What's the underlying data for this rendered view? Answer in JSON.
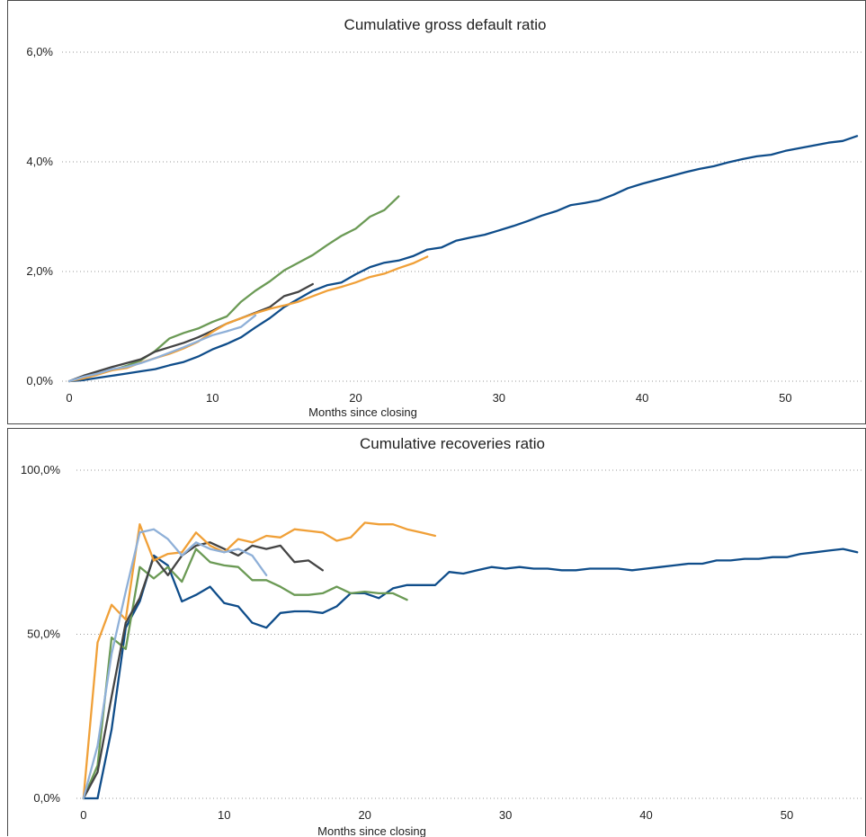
{
  "chart_data": [
    {
      "type": "line",
      "title": "Cumulative gross default ratio",
      "xlabel": "Months since closing",
      "ylabel": "",
      "xlim": [
        -0.5,
        55.5
      ],
      "ylim": [
        0,
        6
      ],
      "yticks": [
        0,
        2,
        4,
        6
      ],
      "ytick_labels": [
        "0,0%",
        "2,0%",
        "4,0%",
        "6,0%"
      ],
      "xticks": [
        0,
        10,
        20,
        30,
        40,
        50
      ],
      "xtick_labels": [
        "0",
        "10",
        "20",
        "30",
        "40",
        "50"
      ],
      "grid": "horizontal dotted",
      "legend": "none",
      "series": [
        {
          "color": "#0f4d8a",
          "x": [
            0,
            1,
            2,
            3,
            4,
            5,
            6,
            7,
            8,
            9,
            10,
            11,
            12,
            13,
            14,
            15,
            16,
            17,
            18,
            19,
            20,
            21,
            22,
            23,
            24,
            25,
            26,
            27,
            28,
            29,
            30,
            31,
            32,
            33,
            34,
            35,
            36,
            37,
            38,
            39,
            40,
            41,
            42,
            43,
            44,
            45,
            46,
            47,
            48,
            49,
            50,
            51,
            52,
            53,
            54,
            55
          ],
          "y": [
            0,
            0.02,
            0.06,
            0.1,
            0.14,
            0.18,
            0.22,
            0.29,
            0.35,
            0.45,
            0.58,
            0.68,
            0.8,
            0.98,
            1.15,
            1.35,
            1.5,
            1.65,
            1.75,
            1.8,
            1.95,
            2.08,
            2.16,
            2.2,
            2.28,
            2.4,
            2.44,
            2.56,
            2.62,
            2.67,
            2.75,
            2.83,
            2.92,
            3.02,
            3.1,
            3.21,
            3.25,
            3.3,
            3.4,
            3.52,
            3.6,
            3.67,
            3.74,
            3.81,
            3.87,
            3.92,
            3.99,
            4.05,
            4.1,
            4.13,
            4.2,
            4.25,
            4.3,
            4.35,
            4.38,
            4.47
          ]
        },
        {
          "color": "#6b9a55",
          "x": [
            0,
            1,
            2,
            3,
            4,
            5,
            6,
            7,
            8,
            9,
            10,
            11,
            12,
            13,
            14,
            15,
            16,
            17,
            18,
            19,
            20,
            21,
            22,
            23
          ],
          "y": [
            0,
            0.06,
            0.14,
            0.2,
            0.28,
            0.38,
            0.55,
            0.78,
            0.88,
            0.96,
            1.08,
            1.18,
            1.45,
            1.65,
            1.82,
            2.02,
            2.16,
            2.3,
            2.48,
            2.65,
            2.78,
            3.0,
            3.12,
            3.37
          ]
        },
        {
          "color": "#444444",
          "x": [
            0,
            1,
            2,
            3,
            4,
            5,
            6,
            7,
            8,
            9,
            10,
            11,
            12,
            13,
            14,
            15,
            16,
            17
          ],
          "y": [
            0,
            0.1,
            0.18,
            0.26,
            0.33,
            0.4,
            0.54,
            0.62,
            0.7,
            0.8,
            0.92,
            1.05,
            1.15,
            1.25,
            1.35,
            1.55,
            1.63,
            1.77
          ]
        },
        {
          "color": "#f0a038",
          "x": [
            0,
            1,
            2,
            3,
            4,
            5,
            6,
            7,
            8,
            9,
            10,
            11,
            12,
            13,
            14,
            15,
            16,
            17,
            18,
            19,
            20,
            21,
            22,
            23,
            24,
            25
          ],
          "y": [
            0,
            0.05,
            0.12,
            0.2,
            0.24,
            0.34,
            0.42,
            0.5,
            0.6,
            0.72,
            0.9,
            1.05,
            1.15,
            1.24,
            1.32,
            1.38,
            1.45,
            1.55,
            1.65,
            1.72,
            1.8,
            1.9,
            1.96,
            2.06,
            2.15,
            2.27
          ]
        },
        {
          "color": "#8fb0d8",
          "x": [
            0,
            1,
            2,
            3,
            4,
            5,
            6,
            7,
            8,
            9,
            10,
            11,
            12,
            13
          ],
          "y": [
            0,
            0.08,
            0.14,
            0.22,
            0.26,
            0.33,
            0.42,
            0.52,
            0.62,
            0.73,
            0.84,
            0.91,
            0.99,
            1.2
          ]
        }
      ]
    },
    {
      "type": "line",
      "title": "Cumulative recoveries ratio",
      "xlabel": "Months since closing",
      "ylabel": "",
      "xlim": [
        -0.5,
        55.5
      ],
      "ylim": [
        0,
        100
      ],
      "yticks": [
        0,
        50,
        100
      ],
      "ytick_labels": [
        "0,0%",
        "50,0%",
        "100,0%"
      ],
      "xticks": [
        0,
        10,
        20,
        30,
        40,
        50
      ],
      "xtick_labels": [
        "0",
        "10",
        "20",
        "30",
        "40",
        "50"
      ],
      "grid": "horizontal dotted",
      "legend": "none",
      "series": [
        {
          "color": "#0f4d8a",
          "x": [
            0,
            1,
            2,
            3,
            4,
            5,
            6,
            7,
            8,
            9,
            10,
            11,
            12,
            13,
            14,
            15,
            16,
            17,
            18,
            19,
            20,
            21,
            22,
            23,
            24,
            25,
            26,
            27,
            28,
            29,
            30,
            31,
            32,
            33,
            34,
            35,
            36,
            37,
            38,
            39,
            40,
            41,
            42,
            43,
            44,
            45,
            46,
            47,
            48,
            49,
            50,
            51,
            52,
            53,
            54,
            55
          ],
          "y": [
            0,
            0,
            21,
            52,
            60,
            74,
            71,
            60,
            62,
            64.5,
            59.5,
            58.5,
            53.5,
            52,
            56.5,
            57,
            57,
            56.5,
            58.5,
            62.5,
            62.5,
            61,
            64,
            65,
            65,
            65,
            69,
            68.5,
            69.5,
            70.5,
            70,
            70.5,
            70,
            70,
            69.5,
            69.5,
            70,
            70,
            70,
            69.5,
            70,
            70.5,
            71,
            71.5,
            71.5,
            72.5,
            72.5,
            73,
            73,
            73.5,
            73.5,
            74.5,
            75,
            75.5,
            76,
            75
          ]
        },
        {
          "color": "#6b9a55",
          "x": [
            0,
            1,
            2,
            3,
            4,
            5,
            6,
            7,
            8,
            9,
            10,
            11,
            12,
            13,
            14,
            15,
            16,
            17,
            18,
            19,
            20,
            21,
            22,
            23
          ],
          "y": [
            0,
            10,
            49,
            45.5,
            70.5,
            67,
            70.5,
            66,
            76,
            72,
            71,
            70.5,
            66.5,
            66.5,
            64.5,
            62,
            62,
            62.5,
            64.5,
            62.5,
            63,
            62.5,
            62.5,
            60.5
          ]
        },
        {
          "color": "#444444",
          "x": [
            0,
            1,
            2,
            3,
            4,
            5,
            6,
            7,
            8,
            9,
            10,
            11,
            12,
            13,
            14,
            15,
            16,
            17
          ],
          "y": [
            0,
            8,
            31,
            53.5,
            61,
            73.5,
            68,
            74,
            77,
            78,
            76,
            74,
            77,
            76,
            77,
            72,
            72.5,
            69.5
          ]
        },
        {
          "color": "#f0a038",
          "x": [
            0,
            1,
            2,
            3,
            4,
            5,
            6,
            7,
            8,
            9,
            10,
            11,
            12,
            13,
            14,
            15,
            16,
            17,
            18,
            19,
            20,
            21,
            22,
            23,
            24,
            25
          ],
          "y": [
            0,
            47.5,
            59,
            54.5,
            83.5,
            72.5,
            74.5,
            75,
            81,
            77,
            75,
            79,
            78,
            80,
            79.5,
            82,
            81.5,
            81,
            78.5,
            79.5,
            84,
            83.5,
            83.5,
            82,
            81,
            80
          ]
        },
        {
          "color": "#8fb0d8",
          "x": [
            0,
            1,
            2,
            3,
            4,
            5,
            6,
            7,
            8,
            9,
            10,
            11,
            12,
            13
          ],
          "y": [
            0,
            16,
            44,
            63,
            81,
            82,
            79,
            74,
            78,
            76,
            75,
            76,
            74,
            68
          ]
        }
      ]
    }
  ]
}
